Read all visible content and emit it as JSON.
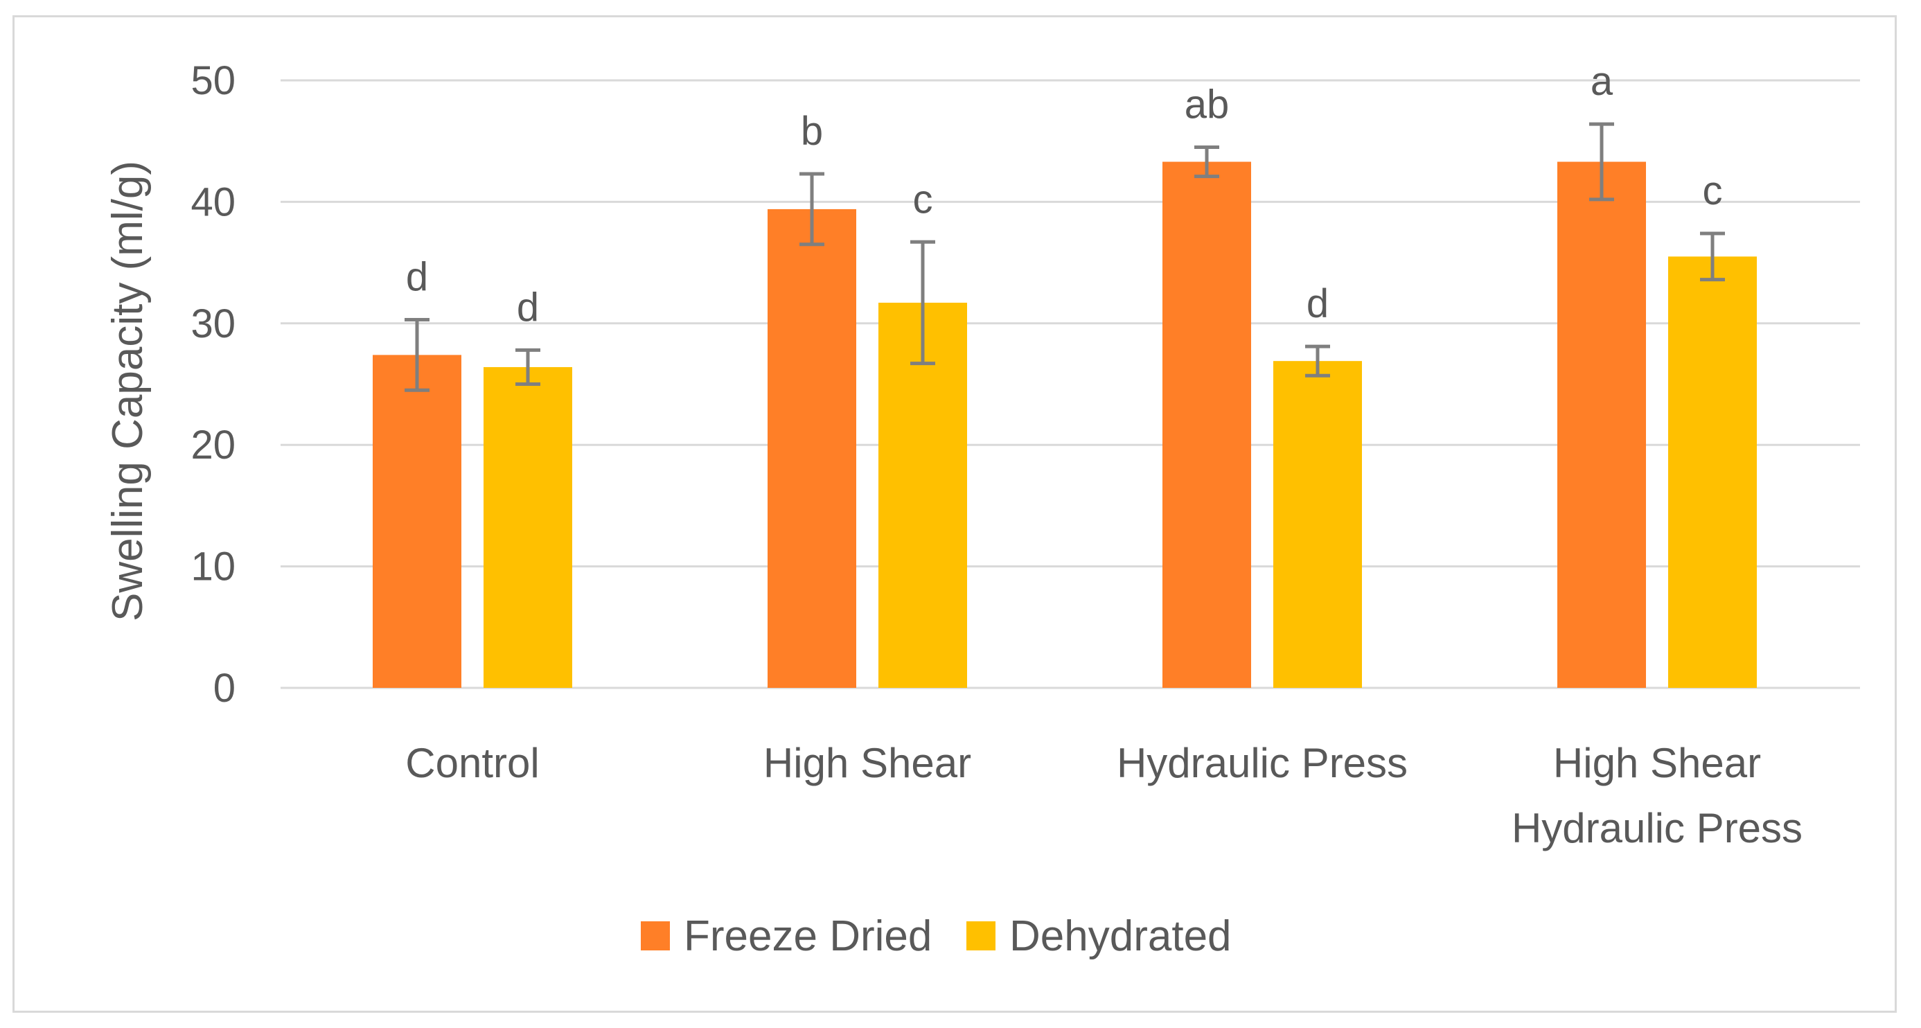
{
  "chart_data": {
    "type": "bar",
    "title": "",
    "xlabel": "",
    "ylabel": "Swelling Capacity (ml/g)",
    "ylim": [
      0,
      50
    ],
    "yticks": [
      0,
      10,
      20,
      30,
      40,
      50
    ],
    "grid": true,
    "legend_position": "bottom",
    "categories": [
      [
        "Control"
      ],
      [
        "High Shear"
      ],
      [
        "Hydraulic Press"
      ],
      [
        "High Shear",
        "Hydraulic Press"
      ]
    ],
    "series": [
      {
        "name": "Freeze Dried",
        "color": "#ff7f27",
        "values": [
          27.4,
          39.4,
          43.3,
          43.3
        ],
        "errors": [
          2.9,
          2.9,
          1.2,
          3.1
        ],
        "labels": [
          "d",
          "b",
          "ab",
          "a"
        ]
      },
      {
        "name": "Dehydrated",
        "color": "#ffc000",
        "values": [
          26.4,
          31.7,
          26.9,
          35.5
        ],
        "errors": [
          1.4,
          5.0,
          1.2,
          1.9
        ],
        "labels": [
          "d",
          "c",
          "d",
          "c"
        ]
      }
    ],
    "colors": {
      "grid": "#d9d9d9",
      "error_bar": "#7f7f7f",
      "text": "#595959"
    }
  }
}
